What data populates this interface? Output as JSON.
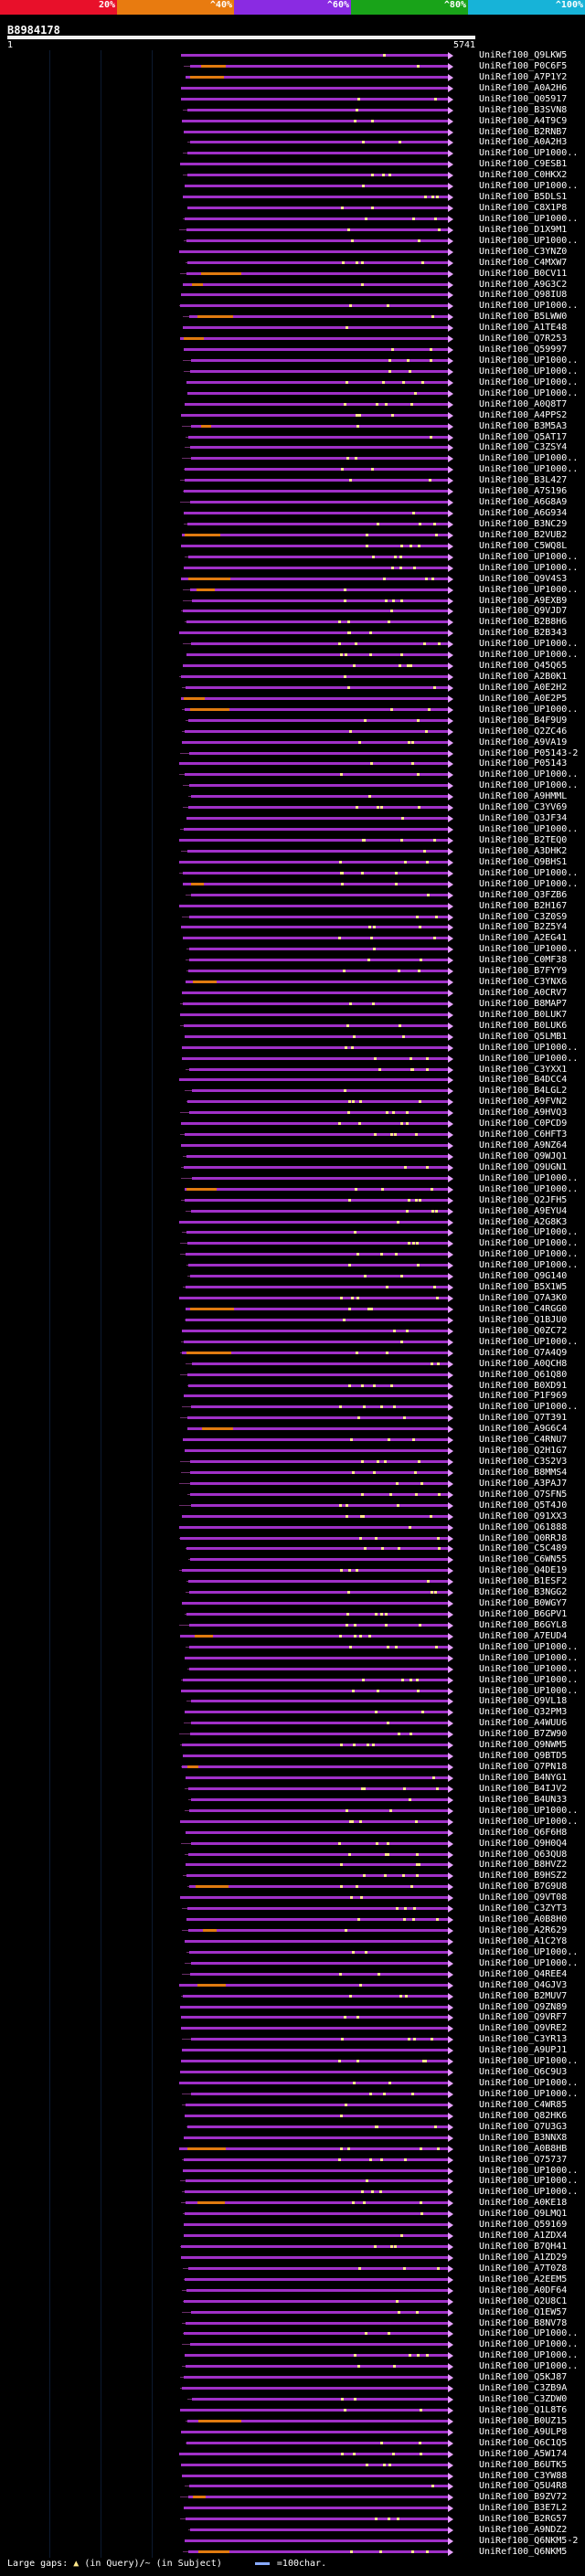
{
  "identity_scale": [
    {
      "label": "20%",
      "color": "#e8102a"
    },
    {
      "label": "^40%",
      "color": "#e87b10"
    },
    {
      "label": "^60%",
      "color": "#8a2be2"
    },
    {
      "label": "^80%",
      "color": "#19a319"
    },
    {
      "label": "^100%",
      "color": "#17b3d8"
    }
  ],
  "query": {
    "id": "B8984178",
    "start": "1",
    "end": "5741"
  },
  "colors": {
    "hit_main": "#a030c8",
    "hit_low": "#e07b10",
    "gap": "#ffe88a",
    "arrow": "#e6a0ff"
  },
  "hits": [
    "UniRef100_Q9LKW5",
    "UniRef100_P0C6F5",
    "UniRef100_A7P1Y2",
    "UniRef100_A0A2H6",
    "UniRef100_Q05917",
    "UniRef100_B3SVN8",
    "UniRef100_A4T9C9",
    "UniRef100_B2RNB7",
    "UniRef100_A0A2H3",
    "UniRef100_UP1000..",
    "UniRef100_C9ESB1",
    "UniRef100_C0HKX2",
    "UniRef100_UP1000..",
    "UniRef100_B5DLS1",
    "UniRef100_C8X1P8",
    "UniRef100_UP1000..",
    "UniRef100_D1X9M1",
    "UniRef100_UP1000..",
    "UniRef100_C3YNZ0",
    "UniRef100_C4MXW7",
    "UniRef100_B0CV11",
    "UniRef100_A9G3C2",
    "UniRef100_Q98IU8",
    "UniRef100_UP1000..",
    "UniRef100_B5LWW0",
    "UniRef100_A1TE48",
    "UniRef100_Q7R253",
    "UniRef100_Q59997",
    "UniRef100_UP1000..",
    "UniRef100_UP1000..",
    "UniRef100_UP1000..",
    "UniRef100_UP1000..",
    "UniRef100_A0Q8T7",
    "UniRef100_A4PPS2",
    "UniRef100_B3M5A3",
    "UniRef100_Q5AT17",
    "UniRef100_C3ZSY4",
    "UniRef100_UP1000..",
    "UniRef100_UP1000..",
    "UniRef100_B3L427",
    "UniRef100_A7S196",
    "UniRef100_A6G8A9",
    "UniRef100_A6G934",
    "UniRef100_B3NC29",
    "UniRef100_B2VUB2",
    "UniRef100_C5WQ8L",
    "UniRef100_UP1000..",
    "UniRef100_UP1000..",
    "UniRef100_Q9V4S3",
    "UniRef100_UP1000..",
    "UniRef100_A9EXB9",
    "UniRef100_Q9VJD7",
    "UniRef100_B2B8H6",
    "UniRef100_B2B343",
    "UniRef100_UP1000..",
    "UniRef100_UP1000..",
    "UniRef100_Q45Q65",
    "UniRef100_A2B0K1",
    "UniRef100_A0E2H2",
    "UniRef100_A0E2P5",
    "UniRef100_UP1000..",
    "UniRef100_B4F9U9",
    "UniRef100_Q2ZC46",
    "UniRef100_A9VA19",
    "UniRef100_P05143-2",
    "UniRef100_P05143",
    "UniRef100_UP1000..",
    "UniRef100_UP1000..",
    "UniRef100_A9HMML",
    "UniRef100_C3YV69",
    "UniRef100_Q3JF34",
    "UniRef100_UP1000..",
    "UniRef100_B2TEQ0",
    "UniRef100_A3DHK2",
    "UniRef100_Q9BHS1",
    "UniRef100_UP1000..",
    "UniRef100_UP1000..",
    "UniRef100_Q3FZB6",
    "UniRef100_B2H167",
    "UniRef100_C3Z0S9",
    "UniRef100_B2Z5Y4",
    "UniRef100_A2EG41",
    "UniRef100_UP1000..",
    "UniRef100_C0MF38",
    "UniRef100_B7FYY9",
    "UniRef100_C3YNX6",
    "UniRef100_A0CRV7",
    "UniRef100_B8MAP7",
    "UniRef100_B0LUK7",
    "UniRef100_B0LUK6",
    "UniRef100_Q5LMB1",
    "UniRef100_UP1000..",
    "UniRef100_UP1000..",
    "UniRef100_C3YXX1",
    "UniRef100_B4DCC4",
    "UniRef100_B4LGL2",
    "UniRef100_A9FVN2",
    "UniRef100_A9HVQ3",
    "UniRef100_C0PCD9",
    "UniRef100_C6HFT3",
    "UniRef100_A9NZ64",
    "UniRef100_Q9WJQ1",
    "UniRef100_Q9UGN1",
    "UniRef100_UP1000..",
    "UniRef100_UP1000..",
    "UniRef100_Q2JFH5",
    "UniRef100_A9EYU4",
    "UniRef100_A2G8K3",
    "UniRef100_UP1000..",
    "UniRef100_UP1000..",
    "UniRef100_UP1000..",
    "UniRef100_UP1000..",
    "UniRef100_Q9G140",
    "UniRef100_B5X1W5",
    "UniRef100_Q7A3K0",
    "UniRef100_C4RGG0",
    "UniRef100_Q1BJU0",
    "UniRef100_Q0ZC72",
    "UniRef100_UP1000..",
    "UniRef100_Q7A4Q9",
    "UniRef100_A0QCH8",
    "UniRef100_Q61Q80",
    "UniRef100_B0XD91",
    "UniRef100_P1F969",
    "UniRef100_UP1000..",
    "UniRef100_Q7T391",
    "UniRef100_A9G6C4",
    "UniRef100_C4RNU7",
    "UniRef100_Q2H1G7",
    "UniRef100_C3S2V3",
    "UniRef100_B8MMS4",
    "UniRef100_A3PAJ7",
    "UniRef100_Q7SFN5",
    "UniRef100_Q5T4J0",
    "UniRef100_Q91XX3",
    "UniRef100_Q61888",
    "UniRef100_Q0RRJ8",
    "UniRef100_C5C489",
    "UniRef100_C6WN55",
    "UniRef100_Q4DE19",
    "UniRef100_B1ESF2",
    "UniRef100_B3NGG2",
    "UniRef100_B0WGY7",
    "UniRef100_B6GPV1",
    "UniRef100_B6GYL8",
    "UniRef100_A7EUD4",
    "UniRef100_UP1000..",
    "UniRef100_UP1000..",
    "UniRef100_UP1000..",
    "UniRef100_UP1000..",
    "UniRef100_UP1000..",
    "UniRef100_Q9VL18",
    "UniRef100_Q32PM3",
    "UniRef100_A4WUU6",
    "UniRef100_B7ZW90",
    "UniRef100_Q9NWM5",
    "UniRef100_Q9BTD5",
    "UniRef100_Q7PN18",
    "UniRef100_B4NYG1",
    "UniRef100_B4IJV2",
    "UniRef100_B4UN33",
    "UniRef100_UP1000..",
    "UniRef100_UP1000..",
    "UniRef100_Q6F6H8",
    "UniRef100_Q9H0Q4",
    "UniRef100_Q63QU8",
    "UniRef100_B8HVZ2",
    "UniRef100_B9HSZ2",
    "UniRef100_B7G9U8",
    "UniRef100_Q9VT08",
    "UniRef100_C3ZYT3",
    "UniRef100_A0B8H0",
    "UniRef100_A2R629",
    "UniRef100_A1C2Y8",
    "UniRef100_UP1000..",
    "UniRef100_UP1000..",
    "UniRef100_Q4REE4",
    "UniRef100_Q4GJV3",
    "UniRef100_B2MUV7",
    "UniRef100_Q9ZN89",
    "UniRef100_Q9VRF7",
    "UniRef100_Q9VRE2",
    "UniRef100_C3YR13",
    "UniRef100_A9UPJ1",
    "UniRef100_UP1000..",
    "UniRef100_Q6C9U3",
    "UniRef100_UP1000..",
    "UniRef100_UP1000..",
    "UniRef100_C4WR85",
    "UniRef100_Q82HK6",
    "UniRef100_Q7U3G3",
    "UniRef100_B3NNX8",
    "UniRef100_A0B8HB",
    "UniRef100_Q75737",
    "UniRef100_UP1000..",
    "UniRef100_UP1000..",
    "UniRef100_UP1000..",
    "UniRef100_A0KE18",
    "UniRef100_Q9LMQ1",
    "UniRef100_Q59169",
    "UniRef100_A1ZDX4",
    "UniRef100_B7QH41",
    "UniRef100_A1ZD29",
    "UniRef100_A7T0Z8",
    "UniRef100_A2EEM5",
    "UniRef100_A0DF64",
    "UniRef100_Q2U8C1",
    "UniRef100_Q1EW57",
    "UniRef100_B8NV78",
    "UniRef100_UP1000..",
    "UniRef100_UP1000..",
    "UniRef100_UP1000..",
    "UniRef100_UP1000..",
    "UniRef100_Q5KJ87",
    "UniRef100_C3ZB9A",
    "UniRef100_C3ZDW0",
    "UniRef100_Q1L8T6",
    "UniRef100_B0UZ15",
    "UniRef100_A9ULP8",
    "UniRef100_Q6C1Q5",
    "UniRef100_A5W174",
    "UniRef100_B6UTK5",
    "UniRef100_C3YW88",
    "UniRef100_Q5U4R8",
    "UniRef100_B9ZV72",
    "UniRef100_B3E7L2",
    "UniRef100_B2RG57",
    "UniRef100_A9NDZ2",
    "UniRef100_Q6NKM5-2",
    "UniRef100_Q6NKM5"
  ],
  "footer": {
    "large_gaps": "Large gaps:",
    "in_query": "(in Query)/~ (in Subject)",
    "scale": "=100char."
  }
}
